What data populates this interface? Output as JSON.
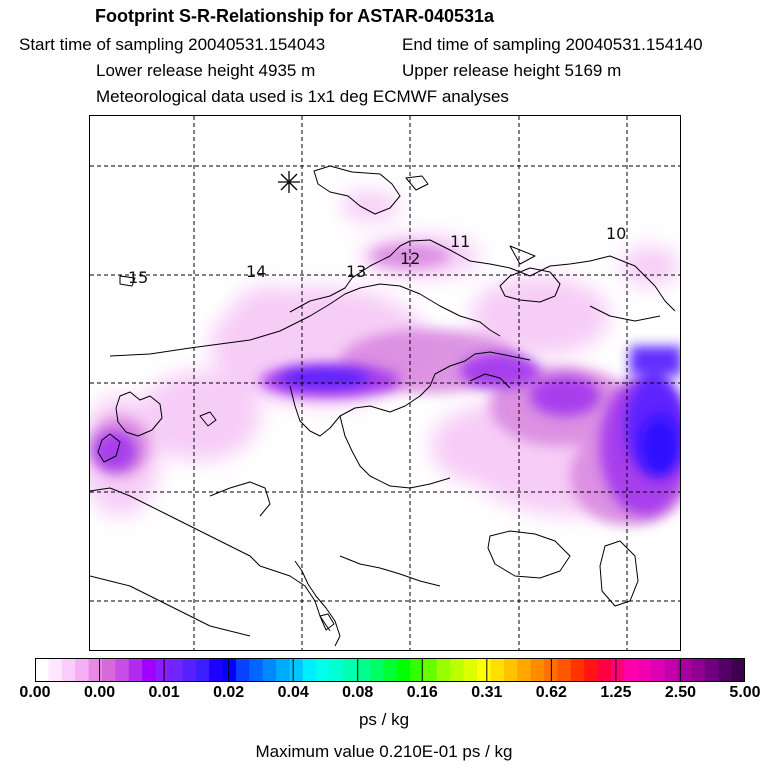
{
  "header": {
    "title": "Footprint S-R-Relationship for ASTAR-040531a",
    "start_time": "Start time of sampling 20040531.154043",
    "end_time": "End time of sampling 20040531.154140",
    "lower_height": "Lower release height 4935 m",
    "upper_height": "Upper release height 5169 m",
    "met_data": "Meteorological data used is 1x1 deg ECMWF analyses"
  },
  "map": {
    "release_marker": "release-site-asterisk",
    "track_labels": [
      "15",
      "14",
      "13",
      "12",
      "11",
      "10"
    ]
  },
  "colorbar": {
    "tick_labels": [
      "0.00",
      "0.00",
      "0.01",
      "0.02",
      "0.04",
      "0.08",
      "0.16",
      "0.31",
      "0.62",
      "1.25",
      "2.50",
      "5.00"
    ],
    "colors": [
      "#ffffff",
      "#ffe8ff",
      "#fbcdfb",
      "#f5b0f5",
      "#e58ae5",
      "#d56ad8",
      "#c84fe6",
      "#b02bed",
      "#a000ff",
      "#8a1cff",
      "#7027ff",
      "#5a21ff",
      "#3a1fff",
      "#1e00ff",
      "#0000ff",
      "#0a40ff",
      "#0066ff",
      "#0088ff",
      "#00aaff",
      "#00c6ff",
      "#00eeff",
      "#00ffe8",
      "#00ffd2",
      "#00ffb0",
      "#00ff90",
      "#00ff66",
      "#00ff33",
      "#00ff00",
      "#33ff00",
      "#66ff00",
      "#99ff00",
      "#bbff00",
      "#ddff00",
      "#ffff00",
      "#ffe000",
      "#ffc400",
      "#ffa800",
      "#ff8c00",
      "#ff7000",
      "#ff5400",
      "#ff3300",
      "#ff1414",
      "#ff0044",
      "#ff0077",
      "#ff00aa",
      "#f000b0",
      "#dd00b4",
      "#c400ac",
      "#a8009c",
      "#900090",
      "#700080",
      "#550066",
      "#400050"
    ]
  },
  "units": "ps / kg",
  "max_value": "Maximum value  0.210E-01 ps / kg"
}
